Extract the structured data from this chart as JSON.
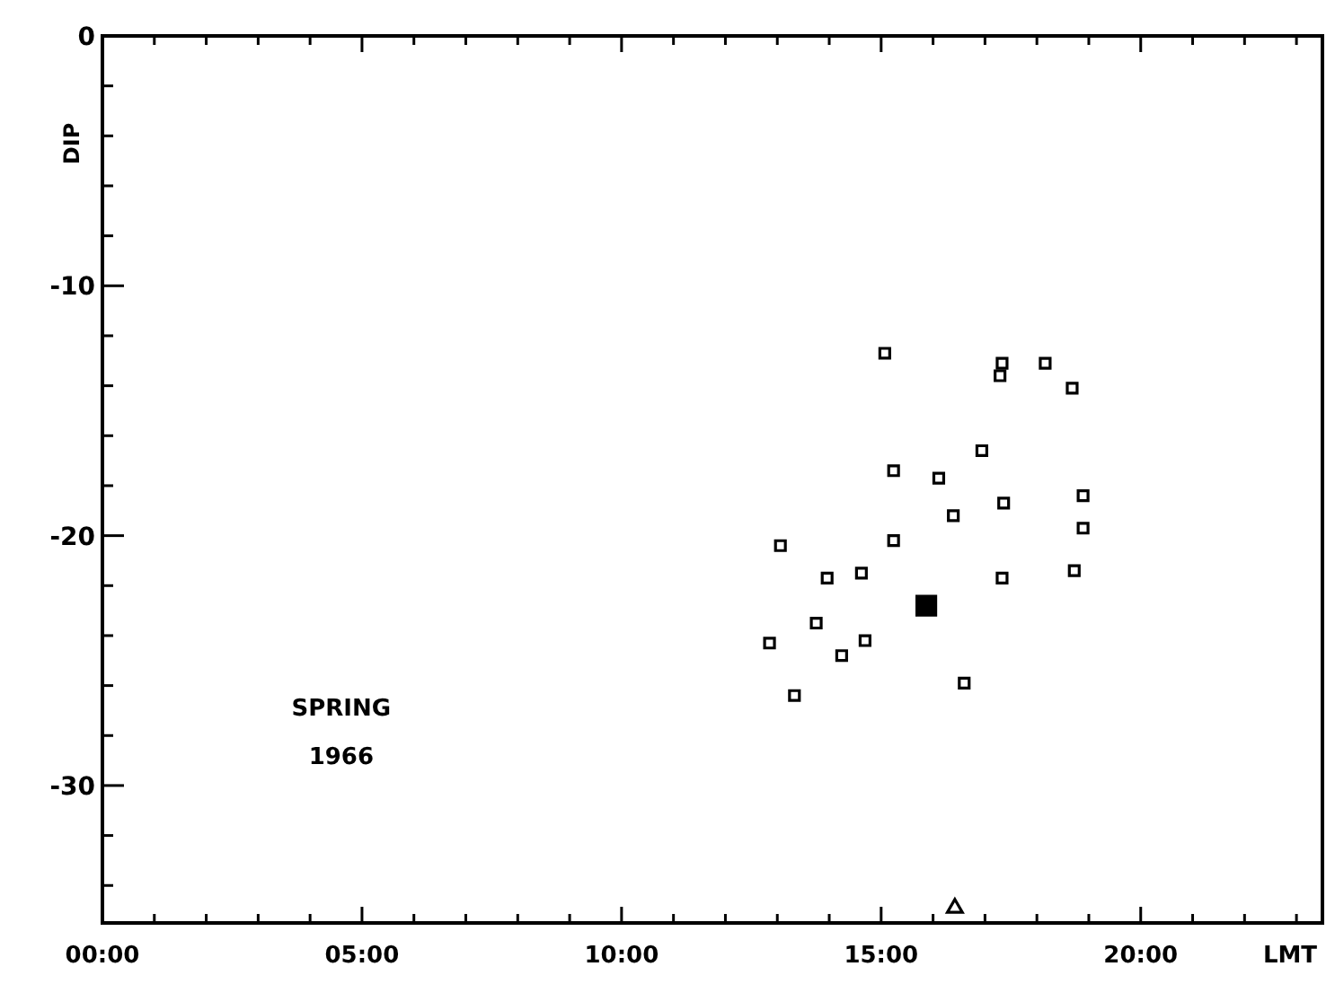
{
  "chart_data": {
    "type": "scatter",
    "xlabel": "LMT",
    "ylabel": "DIP",
    "xlim": [
      0,
      23.5
    ],
    "ylim": [
      -35.5,
      0
    ],
    "xticks": [
      {
        "value": 0,
        "label": "00:00"
      },
      {
        "value": 1,
        "label": null
      },
      {
        "value": 2,
        "label": null
      },
      {
        "value": 3,
        "label": null
      },
      {
        "value": 4,
        "label": null
      },
      {
        "value": 5,
        "label": "05:00"
      },
      {
        "value": 6,
        "label": null
      },
      {
        "value": 7,
        "label": null
      },
      {
        "value": 8,
        "label": null
      },
      {
        "value": 9,
        "label": null
      },
      {
        "value": 10,
        "label": "10:00"
      },
      {
        "value": 11,
        "label": null
      },
      {
        "value": 12,
        "label": null
      },
      {
        "value": 13,
        "label": null
      },
      {
        "value": 14,
        "label": null
      },
      {
        "value": 15,
        "label": "15:00"
      },
      {
        "value": 16,
        "label": null
      },
      {
        "value": 17,
        "label": null
      },
      {
        "value": 18,
        "label": null
      },
      {
        "value": 19,
        "label": null
      },
      {
        "value": 20,
        "label": "20:00"
      },
      {
        "value": 21,
        "label": null
      },
      {
        "value": 22,
        "label": null
      },
      {
        "value": 23,
        "label": null
      }
    ],
    "yticks": [
      0,
      {
        "value": -2,
        "label": null
      },
      {
        "value": -4,
        "label": null
      },
      {
        "value": -6,
        "label": null
      },
      {
        "value": -8,
        "label": null
      },
      {
        "value": -10,
        "label": "-10"
      },
      {
        "value": -12,
        "label": null
      },
      {
        "value": -14,
        "label": null
      },
      {
        "value": -16,
        "label": null
      },
      {
        "value": -18,
        "label": null
      },
      {
        "value": -20,
        "label": "-20"
      },
      {
        "value": -22,
        "label": null
      },
      {
        "value": -24,
        "label": null
      },
      {
        "value": -26,
        "label": null
      },
      {
        "value": -28,
        "label": null
      },
      {
        "value": -30,
        "label": "-30"
      },
      {
        "value": -32,
        "label": null
      },
      {
        "value": -34,
        "label": null
      }
    ],
    "grid": false,
    "annotations": [
      "SPRING 1966"
    ],
    "series": [
      {
        "color": "#000000",
        "marker": "square",
        "x": [
          15.07,
          17.33,
          18.16,
          17.29,
          18.68,
          16.94,
          15.24,
          16.11,
          18.89,
          17.36,
          16.39,
          18.89,
          15.24,
          13.06,
          14.62,
          13.96,
          17.33,
          18.72,
          13.75,
          12.85,
          14.69,
          14.24,
          16.6,
          13.33
        ],
        "values": [
          -12.7,
          -13.1,
          -13.1,
          -13.6,
          -14.1,
          -16.6,
          -17.4,
          -17.7,
          -18.4,
          -18.7,
          -19.2,
          -19.7,
          -20.2,
          -20.4,
          -21.5,
          -21.7,
          -21.7,
          -21.4,
          -23.5,
          -24.3,
          -24.2,
          -24.8,
          -25.9,
          -26.4
        ]
      },
      {
        "color": "#000000",
        "marker": "square",
        "x": [
          15.87
        ],
        "values": [
          -22.8
        ]
      },
      {
        "color": "#000000",
        "marker": "triangle",
        "x": [
          16.42
        ],
        "values": [
          -34.9
        ]
      }
    ]
  }
}
